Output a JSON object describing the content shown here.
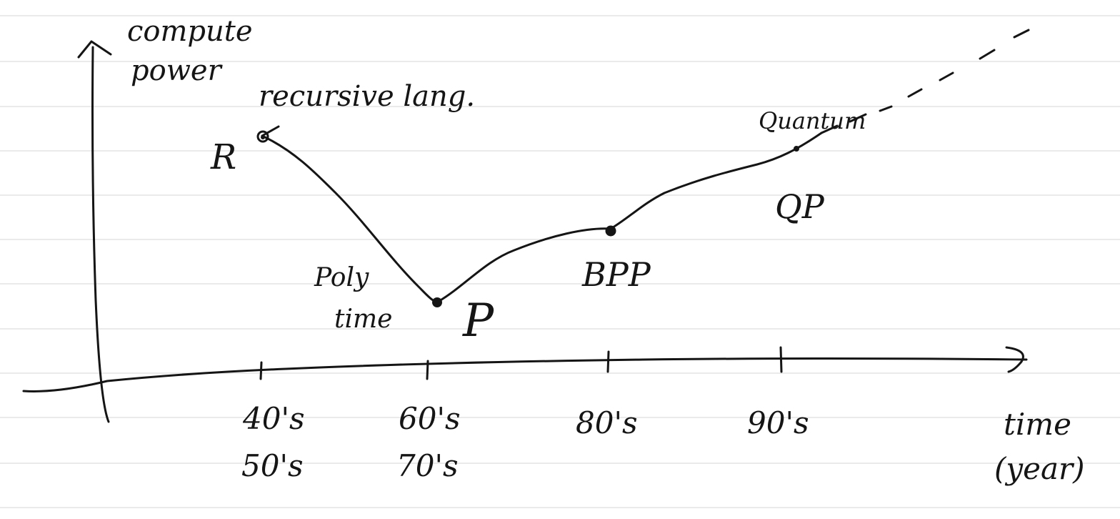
{
  "diagram": {
    "y_axis_label_line1": "compute",
    "y_axis_label_line2": "power",
    "x_axis_label_line1": "time",
    "x_axis_label_line2": "(year)",
    "ticks": [
      {
        "line1": "40's",
        "line2": "50's"
      },
      {
        "line1": "60's",
        "line2": "70's"
      },
      {
        "line1": "80's",
        "line2": ""
      },
      {
        "line1": "90's",
        "line2": ""
      }
    ],
    "points": [
      {
        "class": "R",
        "note": "recursive lang."
      },
      {
        "class": "P",
        "note_line1": "Poly",
        "note_line2": "time"
      },
      {
        "class": "BPP"
      },
      {
        "class": "QP",
        "note": "Quantum"
      }
    ],
    "ink_color": "#151515",
    "ruled_line_color": "#e3e3e3"
  }
}
